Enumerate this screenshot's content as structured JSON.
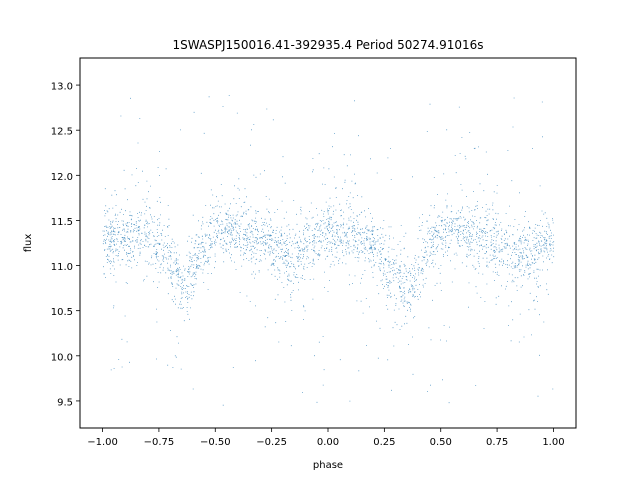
{
  "chart_data": {
    "type": "scatter",
    "title": "1SWASPJ150016.41-392935.4 Period 50274.91016s",
    "xlabel": "phase",
    "ylabel": "flux",
    "xlim": [
      -1.1,
      1.1
    ],
    "ylim": [
      9.2,
      13.3
    ],
    "xticks": [
      -1.0,
      -0.75,
      -0.5,
      -0.25,
      0.0,
      0.25,
      0.5,
      0.75,
      1.0
    ],
    "xtick_labels": [
      "−1.00",
      "−0.75",
      "−0.50",
      "−0.25",
      "0.00",
      "0.25",
      "0.50",
      "0.75",
      "1.00"
    ],
    "yticks": [
      9.5,
      10.0,
      10.5,
      11.0,
      11.5,
      12.0,
      12.5,
      13.0
    ],
    "ytick_labels": [
      "9.5",
      "10.0",
      "10.5",
      "11.0",
      "11.5",
      "12.0",
      "12.5",
      "13.0"
    ],
    "grid": false,
    "marker_color": "#1f77b4",
    "series": [
      {
        "phase_range": [
          -1.0,
          1.0
        ],
        "mean_flux_profile": {
          "phase": [
            -1.0,
            -0.9,
            -0.8,
            -0.72,
            -0.68,
            -0.64,
            -0.6,
            -0.56,
            -0.5,
            -0.4,
            -0.3,
            -0.2,
            -0.15,
            -0.1,
            0.0,
            0.1,
            0.15,
            0.2,
            0.28,
            0.32,
            0.36,
            0.4,
            0.44,
            0.5,
            0.6,
            0.7,
            0.8,
            0.85,
            0.9,
            1.0
          ],
          "flux": [
            11.25,
            11.35,
            11.35,
            11.2,
            11.0,
            10.72,
            10.95,
            11.2,
            11.35,
            11.4,
            11.3,
            11.15,
            11.1,
            11.2,
            11.35,
            11.35,
            11.3,
            11.2,
            11.0,
            10.85,
            10.72,
            10.95,
            11.2,
            11.35,
            11.4,
            11.3,
            11.15,
            11.1,
            11.15,
            11.25
          ]
        }
      }
    ]
  }
}
